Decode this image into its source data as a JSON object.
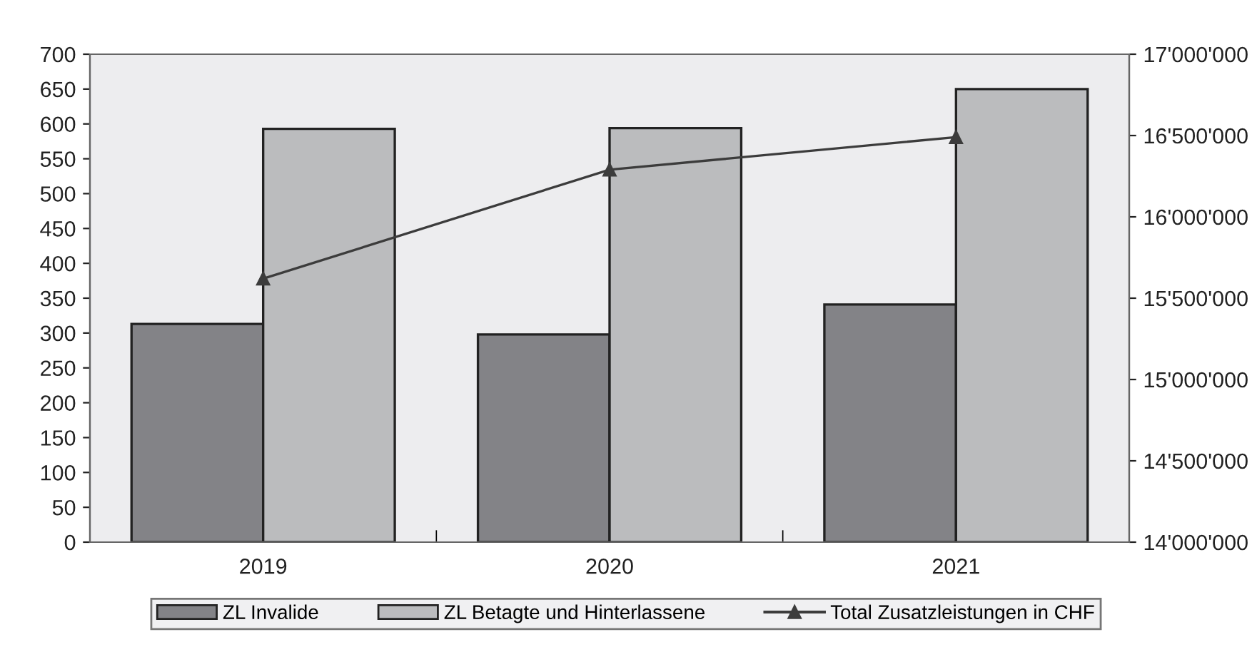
{
  "chart_data": {
    "type": "bar",
    "categories": [
      "2019",
      "2020",
      "2021"
    ],
    "series": [
      {
        "name": "ZL Invalide",
        "color": "#838387",
        "values": [
          313,
          298,
          341
        ]
      },
      {
        "name": "ZL Betagte und Hinterlassene",
        "color": "#bbbcbe",
        "values": [
          593,
          594,
          650
        ]
      },
      {
        "name": "Total Zusatzleistungen in CHF",
        "type": "line",
        "axis": "y2",
        "color": "#3c3c3c",
        "marker": "triangle",
        "values": [
          15620000,
          16290000,
          16490000
        ]
      }
    ],
    "ylim": [
      0,
      700
    ],
    "yticks": [
      0,
      50,
      100,
      150,
      200,
      250,
      300,
      350,
      400,
      450,
      500,
      550,
      600,
      650,
      700
    ],
    "y2lim": [
      14000000,
      17000000
    ],
    "y2ticks": [
      {
        "value": 14000000,
        "label": "14'000'000"
      },
      {
        "value": 14500000,
        "label": "14'500'000"
      },
      {
        "value": 15000000,
        "label": "15'000'000"
      },
      {
        "value": 15500000,
        "label": "15'500'000"
      },
      {
        "value": 16000000,
        "label": "16'000'000"
      },
      {
        "value": 16500000,
        "label": "16'500'000"
      },
      {
        "value": 17000000,
        "label": "17'000'000"
      }
    ],
    "grid": false,
    "legend": "bottom"
  }
}
